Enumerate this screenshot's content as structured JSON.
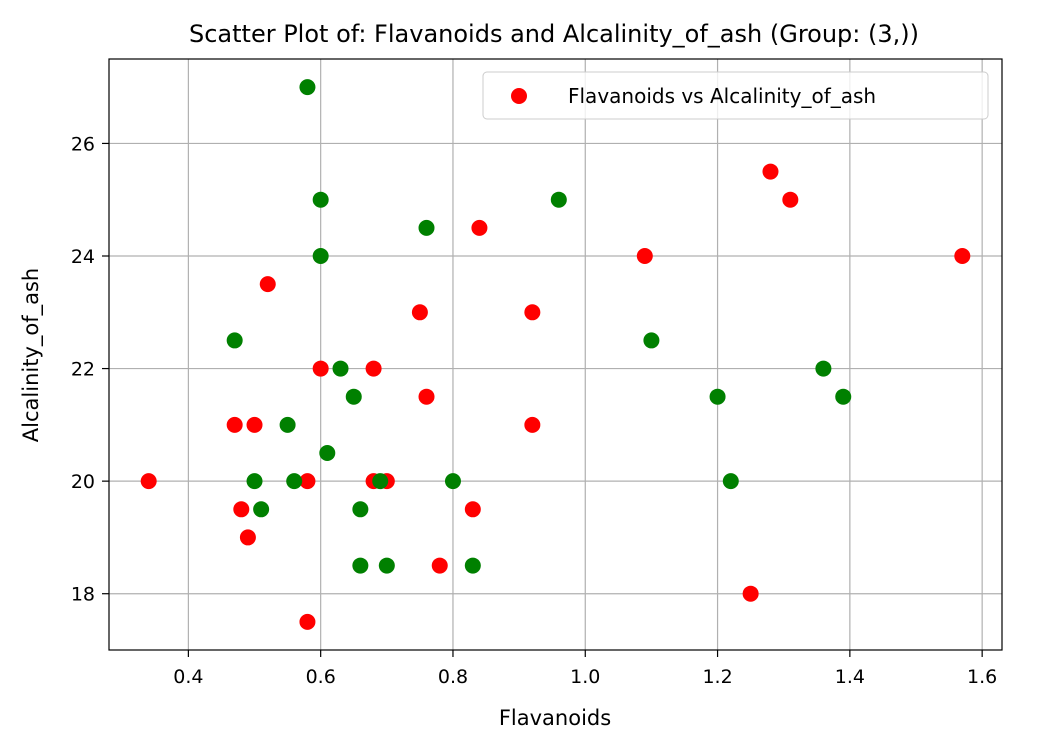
{
  "chart_data": {
    "type": "scatter",
    "title": "Scatter Plot of: Flavanoids and Alcalinity_of_ash (Group: (3,))",
    "xlabel": "Flavanoids",
    "ylabel": "Alcalinity_of_ash",
    "xlim": [
      0.28,
      1.63
    ],
    "ylim": [
      17.0,
      27.5
    ],
    "xticks": [
      0.4,
      0.6,
      0.8,
      1.0,
      1.2,
      1.4,
      1.6
    ],
    "xtick_labels": [
      "0.4",
      "0.6",
      "0.8",
      "1.0",
      "1.2",
      "1.4",
      "1.6"
    ],
    "yticks": [
      18,
      20,
      22,
      24,
      26
    ],
    "ytick_labels": [
      "18",
      "20",
      "22",
      "24",
      "26"
    ],
    "grid": true,
    "legend_position": "top-right",
    "series": [
      {
        "name": "Flavanoids vs Alcalinity_of_ash",
        "color": "#ff0000",
        "in_legend": true,
        "points": [
          [
            0.34,
            20.0
          ],
          [
            0.47,
            21.0
          ],
          [
            0.48,
            19.5
          ],
          [
            0.49,
            19.0
          ],
          [
            0.5,
            21.0
          ],
          [
            0.52,
            23.5
          ],
          [
            0.58,
            20.0
          ],
          [
            0.58,
            17.5
          ],
          [
            0.6,
            22.0
          ],
          [
            0.68,
            22.0
          ],
          [
            0.68,
            20.0
          ],
          [
            0.7,
            20.0
          ],
          [
            0.75,
            23.0
          ],
          [
            0.76,
            21.5
          ],
          [
            0.78,
            18.5
          ],
          [
            0.83,
            19.5
          ],
          [
            0.84,
            24.5
          ],
          [
            0.92,
            23.0
          ],
          [
            0.92,
            21.0
          ],
          [
            1.09,
            24.0
          ],
          [
            1.25,
            18.0
          ],
          [
            1.28,
            25.5
          ],
          [
            1.31,
            25.0
          ],
          [
            1.57,
            24.0
          ]
        ]
      },
      {
        "name": "",
        "color": "#008000",
        "in_legend": false,
        "points": [
          [
            0.47,
            22.5
          ],
          [
            0.5,
            20.0
          ],
          [
            0.51,
            19.5
          ],
          [
            0.55,
            21.0
          ],
          [
            0.56,
            20.0
          ],
          [
            0.58,
            27.0
          ],
          [
            0.6,
            25.0
          ],
          [
            0.6,
            24.0
          ],
          [
            0.61,
            20.5
          ],
          [
            0.63,
            22.0
          ],
          [
            0.65,
            21.5
          ],
          [
            0.66,
            19.5
          ],
          [
            0.66,
            18.5
          ],
          [
            0.69,
            20.0
          ],
          [
            0.7,
            18.5
          ],
          [
            0.76,
            24.5
          ],
          [
            0.8,
            20.0
          ],
          [
            0.83,
            18.5
          ],
          [
            0.96,
            25.0
          ],
          [
            1.1,
            22.5
          ],
          [
            1.2,
            21.5
          ],
          [
            1.22,
            20.0
          ],
          [
            1.36,
            22.0
          ],
          [
            1.39,
            21.5
          ]
        ]
      }
    ]
  }
}
